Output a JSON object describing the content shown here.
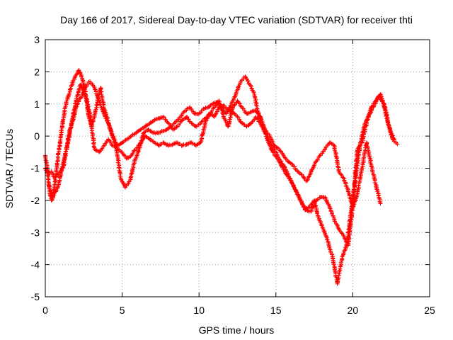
{
  "chart_data": {
    "type": "scatter",
    "title": "Day 166 of 2017, Sidereal Day-to-day VTEC variation (SDTVAR) for receiver thti",
    "xlabel": "GPS time / hours",
    "ylabel": "SDTVAR / TECUs",
    "xlim": [
      0,
      25
    ],
    "ylim": [
      -5,
      3
    ],
    "xticks": [
      "0",
      "5",
      "10",
      "15",
      "20",
      "25"
    ],
    "yticks": [
      "-5",
      "-4",
      "-3",
      "-2",
      "-1",
      "0",
      "1",
      "2",
      "3"
    ],
    "grid": true,
    "marker": "+",
    "series_color": "#ff0000",
    "series": [
      {
        "x": [
          0.0,
          0.1,
          0.2,
          0.3,
          0.4,
          0.5,
          0.6,
          0.7,
          0.8,
          0.9,
          1.0,
          1.1,
          1.2,
          1.3,
          1.4,
          1.6,
          1.8,
          2.0,
          2.2,
          2.4,
          2.6,
          2.8,
          3.0,
          3.2,
          3.4,
          3.6,
          3.8,
          4.0,
          4.3,
          4.6,
          4.9,
          5.2,
          5.5,
          5.8,
          6.1,
          6.4,
          6.7,
          7.0,
          7.3,
          7.6,
          7.9,
          8.2,
          8.5,
          8.8,
          9.1,
          9.4,
          9.7,
          10.0,
          10.3,
          10.6,
          10.9,
          11.2,
          11.5,
          11.8,
          12.1,
          12.4,
          12.7,
          13.0,
          13.3,
          13.6,
          13.9,
          14.2,
          14.5,
          14.8,
          15.1,
          15.4,
          15.7,
          16.0,
          16.3,
          16.6,
          16.9,
          17.2,
          17.5,
          17.8,
          18.1,
          18.4,
          18.7,
          19.0,
          19.3,
          19.6,
          19.9,
          20.2,
          20.5,
          20.8,
          21.1,
          21.4,
          21.7,
          22.0,
          22.3,
          22.6,
          22.9
        ],
        "y": [
          -0.6,
          -0.9,
          -1.3,
          -1.8,
          -2.0,
          -1.9,
          -1.6,
          -1.2,
          -0.8,
          -0.4,
          0.0,
          0.3,
          0.6,
          0.9,
          1.1,
          1.4,
          1.7,
          1.9,
          2.05,
          1.8,
          1.4,
          0.7,
          0.3,
          0.6,
          1.1,
          1.5,
          0.9,
          0.6,
          0.1,
          -0.3,
          -1.3,
          -1.6,
          -1.4,
          -0.8,
          -0.4,
          0.1,
          0.2,
          0.1,
          0.1,
          0.15,
          0.2,
          0.3,
          0.45,
          0.6,
          0.8,
          0.9,
          0.7,
          0.7,
          0.85,
          0.9,
          1.0,
          1.05,
          0.85,
          0.7,
          1.0,
          1.3,
          1.7,
          1.85,
          1.6,
          1.3,
          0.6,
          0.25,
          -0.2,
          -0.5,
          -0.7,
          -0.95,
          -1.2,
          -1.4,
          -1.7,
          -2.0,
          -2.3,
          -2.2,
          -2.0,
          -2.6,
          -2.9,
          -3.3,
          -3.8,
          -4.6,
          -3.8,
          -3.4,
          -2.3,
          -1.2,
          -0.2,
          0.4,
          0.7,
          0.95,
          1.25,
          1.0,
          0.4,
          -0.1,
          -0.25
        ]
      },
      {
        "x": [
          0.0,
          0.2,
          0.4,
          0.6,
          0.8,
          1.0,
          1.2,
          1.4,
          1.6,
          1.8,
          2.0,
          2.3,
          2.6,
          2.9,
          3.2,
          3.5,
          3.8,
          4.1,
          4.4,
          4.7,
          5.0,
          5.3,
          5.6,
          5.9,
          6.2,
          6.5,
          6.8,
          7.1,
          7.4,
          7.7,
          8.0,
          8.3,
          8.6,
          8.9,
          9.2,
          9.5,
          9.8,
          10.1,
          10.4,
          10.7,
          11.0,
          11.3,
          11.6,
          11.9,
          12.2,
          12.5,
          12.8,
          13.1,
          13.4,
          13.7,
          14.0,
          14.3,
          14.6,
          14.9,
          15.2,
          15.5,
          15.8,
          16.1,
          16.4,
          16.7,
          17.0,
          17.3,
          17.6,
          17.9,
          18.2,
          18.5,
          18.8,
          19.1,
          19.4,
          19.7,
          20.0,
          20.3,
          20.6,
          20.9,
          21.2,
          21.5,
          21.8
        ],
        "y": [
          -1.0,
          -1.2,
          -1.1,
          -1.3,
          -1.2,
          -1.1,
          -0.9,
          -0.3,
          0.2,
          0.5,
          0.9,
          1.2,
          1.5,
          1.7,
          1.5,
          1.1,
          0.7,
          0.4,
          0.0,
          -0.3,
          -0.2,
          -0.1,
          0.0,
          0.1,
          0.2,
          0.3,
          0.4,
          0.5,
          0.55,
          0.6,
          0.4,
          0.2,
          0.3,
          0.5,
          0.6,
          0.4,
          0.3,
          0.4,
          0.55,
          0.7,
          0.9,
          1.1,
          0.6,
          0.3,
          0.9,
          1.1,
          0.9,
          0.7,
          0.75,
          0.8,
          0.6,
          0.2,
          0.0,
          -0.3,
          -0.4,
          -0.6,
          -0.8,
          -0.9,
          -1.1,
          -1.2,
          -1.4,
          -1.1,
          -0.8,
          -0.6,
          -0.4,
          -0.2,
          -0.3,
          -1.1,
          -1.3,
          -1.7,
          -2.2,
          -1.8,
          -1.0,
          -0.2,
          -0.9,
          -1.5,
          -2.1
        ]
      },
      {
        "x": [
          0.2,
          0.5,
          0.8,
          1.1,
          1.4,
          1.7,
          2.0,
          2.3,
          2.6,
          2.9,
          3.2,
          3.5,
          3.8,
          4.1,
          4.4,
          4.7,
          5.0,
          5.3,
          5.6,
          5.9,
          6.2,
          6.5,
          6.8,
          7.1,
          7.4,
          7.7,
          8.0,
          8.3,
          8.6,
          8.9,
          9.2,
          9.5,
          9.8,
          10.1,
          10.4,
          10.7,
          11.0,
          11.3,
          11.6,
          11.9,
          12.2,
          12.5,
          12.8,
          13.1,
          13.4,
          13.7,
          14.0,
          14.3,
          14.6,
          14.9,
          15.2,
          15.5,
          15.8,
          16.1,
          16.4,
          16.7,
          17.0,
          17.3,
          17.6,
          17.9,
          18.2,
          18.5,
          18.8,
          19.1,
          19.4,
          19.7,
          20.0,
          20.3,
          20.6,
          20.9,
          21.2,
          21.5,
          21.8,
          22.1,
          22.4,
          22.7
        ],
        "y": [
          -1.5,
          -1.9,
          -1.6,
          -1.0,
          -0.4,
          0.4,
          1.1,
          1.6,
          1.3,
          0.7,
          -0.4,
          -0.5,
          -0.3,
          -0.1,
          -0.3,
          -0.4,
          -0.5,
          -0.7,
          -0.6,
          -0.4,
          -0.2,
          0.0,
          -0.1,
          -0.2,
          -0.3,
          -0.2,
          -0.3,
          -0.25,
          -0.2,
          -0.3,
          -0.25,
          -0.2,
          -0.3,
          -0.2,
          0.4,
          0.7,
          0.6,
          0.9,
          0.95,
          0.8,
          0.75,
          0.6,
          0.4,
          0.3,
          0.4,
          0.6,
          0.4,
          0.1,
          -0.2,
          -0.4,
          -0.7,
          -0.9,
          -1.2,
          -1.5,
          -1.8,
          -2.1,
          -2.3,
          -2.35,
          -2.0,
          -1.9,
          -1.9,
          -2.2,
          -2.6,
          -2.9,
          -3.1,
          -3.4,
          -2.2,
          -0.4,
          -0.2,
          0.4,
          0.9,
          1.1,
          1.3,
          0.9,
          0.2,
          -0.1
        ]
      }
    ]
  }
}
